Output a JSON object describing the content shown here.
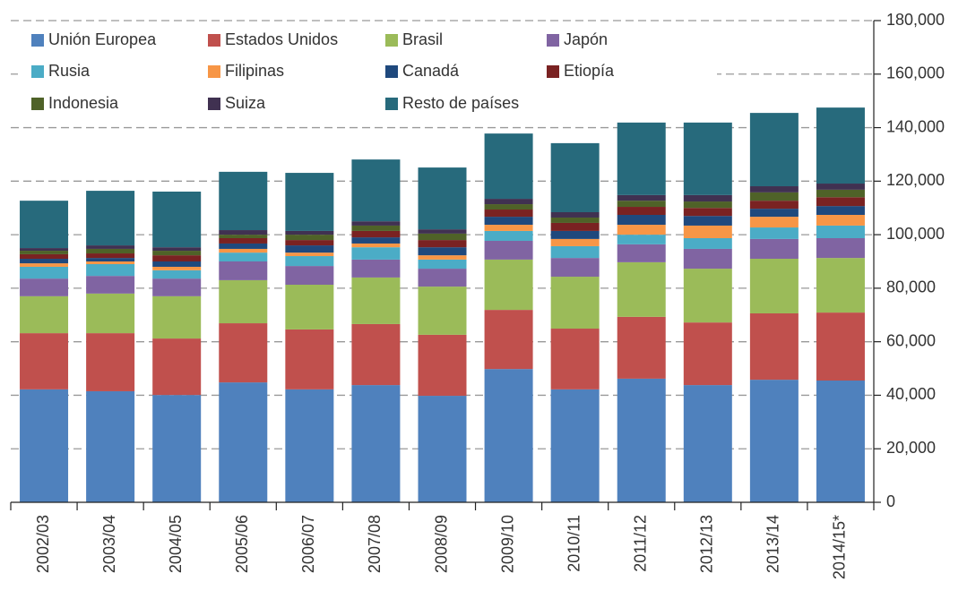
{
  "chart_data": {
    "type": "stacked_bar",
    "categories": [
      "2002/03",
      "2003/04",
      "2004/05",
      "2005/06",
      "2006/07",
      "2007/08",
      "2008/09",
      "2009/10",
      "2010/11",
      "2011/12",
      "2012/13",
      "2013/14",
      "2014/15*"
    ],
    "series": [
      {
        "name": "Unión Europea",
        "color": "#4f81bd",
        "values": [
          42200,
          41500,
          40100,
          44800,
          42200,
          43800,
          39800,
          49800,
          42200,
          46200,
          43800,
          45800,
          45500
        ]
      },
      {
        "name": "Estados Unidos",
        "color": "#c0504d",
        "values": [
          21000,
          21700,
          21100,
          22100,
          22400,
          22800,
          22800,
          22100,
          22700,
          23100,
          23400,
          24800,
          25400
        ]
      },
      {
        "name": "Brasil",
        "color": "#9bbb59",
        "values": [
          13800,
          14800,
          15800,
          16100,
          16700,
          17400,
          18000,
          18800,
          19400,
          20400,
          20100,
          20400,
          20400
        ]
      },
      {
        "name": "Japón",
        "color": "#8064a2",
        "values": [
          6600,
          6600,
          6600,
          7000,
          7000,
          6700,
          6700,
          7000,
          7000,
          6700,
          7400,
          7400,
          7400
        ]
      },
      {
        "name": "Rusia",
        "color": "#4bacc6",
        "values": [
          4400,
          4400,
          3100,
          3300,
          3700,
          4600,
          3400,
          3700,
          4400,
          3600,
          4000,
          4300,
          4700
        ]
      },
      {
        "name": "Filipinas",
        "color": "#f79646",
        "values": [
          1300,
          1000,
          1300,
          1400,
          1300,
          1400,
          1600,
          2300,
          2700,
          3700,
          4700,
          4000,
          4000
        ]
      },
      {
        "name": "Canadá",
        "color": "#1f497d",
        "values": [
          1700,
          1300,
          2000,
          2000,
          2700,
          2300,
          3000,
          3000,
          3000,
          3700,
          3600,
          3000,
          3300
        ]
      },
      {
        "name": "Etiopía",
        "color": "#7a2222",
        "values": [
          1700,
          1700,
          2300,
          2000,
          2000,
          2400,
          2700,
          2700,
          3000,
          3000,
          3000,
          3000,
          3300
        ]
      },
      {
        "name": "Indonesia",
        "color": "#4f6228",
        "values": [
          1300,
          1700,
          1700,
          1300,
          2000,
          2000,
          2400,
          2000,
          2000,
          2300,
          2400,
          3100,
          2800
        ]
      },
      {
        "name": "Suiza",
        "color": "#403151",
        "values": [
          1000,
          1300,
          1300,
          1700,
          1400,
          1600,
          1600,
          2000,
          2000,
          2100,
          2400,
          2300,
          2300
        ]
      },
      {
        "name": "Resto de países",
        "color": "#276a7c",
        "values": [
          17700,
          20400,
          20800,
          21800,
          21700,
          23100,
          23100,
          24400,
          25800,
          27100,
          27100,
          27400,
          28400
        ]
      }
    ],
    "ylim": [
      0,
      180000
    ],
    "yticks": [
      0,
      {
        "value": 20000,
        "label": "20,000"
      },
      {
        "value": 40000,
        "label": "40,000"
      },
      {
        "value": 60000,
        "label": "60,000"
      },
      {
        "value": 80000,
        "label": "80,000"
      },
      {
        "value": 100000,
        "label": "100,000"
      },
      {
        "value": 120000,
        "label": "120,000"
      },
      {
        "value": 140000,
        "label": "140,000"
      },
      {
        "value": 160000,
        "label": "160,000"
      },
      {
        "value": 180000,
        "label": "180,000"
      }
    ],
    "y_axis_side": "right",
    "grid": true,
    "legend": "upper left"
  }
}
